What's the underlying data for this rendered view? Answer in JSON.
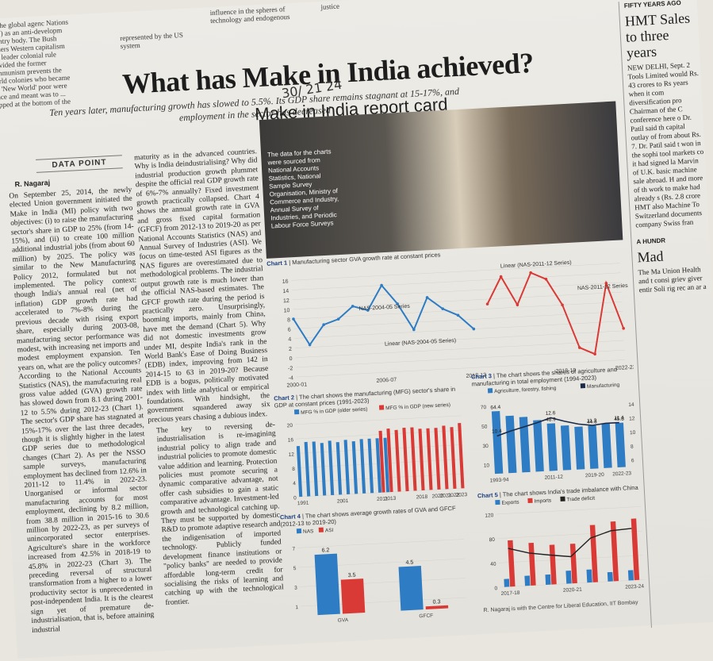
{
  "top_strip": {
    "col1": "sm the global agenc Nations (UN) as an anti-developm country body. The Bush leaders Western capitalism and leader colonial rule provided the former communism prevents the world colonies who became the 'New World' poor were space and meant was to ... trapped at the bottom of the",
    "col2": "represented by the US system",
    "col3": "influence in the spheres of technology and endogenous",
    "col4": "justice"
  },
  "headline": "What has Make in India achieved?",
  "deck": "Ten years later, manufacturing growth has slowed to 5.5%. Its GDP share remains stagnant at 15-17%, and employment in the sector has decreased",
  "handwritten": "30/ 21 24",
  "data_point": "DATA POINT",
  "byline": "R. Nagaraj",
  "body": {
    "col1": "On September 25, 2014, the newly elected Union government initiated the Make in India (MI) policy with two objectives: (i) to raise the manufacturing sector's share in GDP to 25% (from 14-15%), and (ii) to create 100 million additional industrial jobs (from about 60 million) by 2025. The policy was similar to the New Manufacturing Policy 2012, formulated but not implemented. The policy context: though India's annual real (net of inflation) GDP growth rate had accelerated to 7%-8% during the previous decade with rising export share, especially during 2003-08, manufacturing sector performance was modest, with increasing net imports and modest employment expansion. Ten years on, what are the policy outcomes? According to the National Accounts Statistics (NAS), the manufacturing real gross value added (GVA) growth rate has slowed down from 8.1 during 2001-12 to 5.5% during 2012-23 (Chart 1). The sector's GDP share has stagnated at 15%-17% over the last three decades, though it is slightly higher in the latest GDP series due to methodological changes (Chart 2). As per the NSSO sample surveys, manufacturing employment has declined from 12.6% in 2011-12 to 11.4% in 2022-23. Unorganised or informal sector manufacturing accounts for most employment, declining by 8.2 million, from 38.8 million in 2015-16 to 30.6 million by 2022-23, as per surveys of unincorporated sector enterprises. Agriculture's share in the workforce increased from 42.5% in 2018-19 to 45.8% in 2022-23 (Chart 3). The preceding reversal of structural transformation from a higher to a lower productivity sector is unprecedented in post-independent India. It is the clearest sign yet of premature de-industrialisation, that is, before attaining industrial",
    "col2": "maturity as in the advanced countries. Why is India deindustrialising? Why did industrial production growth plummet despite the official real GDP growth rate of 6%-7% annually? Fixed investment growth practically collapsed. Chart 4 shows the annual growth rate in GVA and gross fixed capital formation (GFCF) from 2012-13 to 2019-20 as per National Accounts Statistics (NAS) and Annual Survey of Industries (ASI). We focus on time-tested ASI figures as the NAS figures are overestimated due to methodological problems. The industrial output growth rate is much lower than the official NAS-based estimates. The GFCF growth rate during the period is practically zero. Unsurprisingly, booming imports, mainly from China, have met the demand (Chart 5). Why did not domestic investments grow under MI, despite India's rank in the World Bank's Ease of Doing Business (EDB) index, improving from 142 in 2014-15 to 63 in 2019-20? Because EDB is a bogus, politically motivated index with little analytical or empirical foundations. With hindsight, the government squandered away six precious years chasing a dubious index.",
    "col3": "The key to reversing de-industrialisation is re-imagining industrial policy to align trade and industrial policies to promote domestic value addition and learning. Protection policies must promote securing a dynamic comparative advantage, not offer cash subsidies to gain a static comparative advantage. Investment-led growth and technological catching up. They must be supported by domestic R&D to promote adaptive research and the indigenisation of imported technology. Publicly funded development finance institutions or \"policy banks\" are needed to provide affordable long-term credit for socialising the risks of learning and catching up with the technological frontier."
  },
  "report_card_title": "Make in India report card",
  "photo_note": "The data for the charts were sourced from National Accounts Statistics, National Sample Survey Organisation, Ministry of Commerce and Industry, Annual Survey of Industries, and Periodic Labour Force Surveys",
  "right_rail": {
    "tag": "FIFTY YEARS AGO",
    "headline": "HMT Sales to three years",
    "body": "NEW DELHI, Sept. 2 Tools Limited would Rs. 43 crores to Rs years when it com diversification pro Chairman of the C conference here o Dr. Patil said th capital outlay of from about Rs. 7. Dr. Patil said t won in the sophi tool markets co it had signed la Marvin of U.K. basic machine sale abroad. H and more of th work to make had already s (Rs. 2.8 crore HMT also Machine To Switzerland documents company Swiss fran",
    "tag2": "A HUNDR",
    "headline2": "Mad",
    "body2": "The Ma Union Health and t consi griev giver entir Soli rig rec an ar a"
  },
  "chart_data": [
    {
      "id": "chart1",
      "type": "line",
      "title_bold": "Chart 1",
      "title": "Manufacturing sector GVA growth rate at constant prices",
      "x": [
        "2000-01",
        "2001-02",
        "2002-03",
        "2003-04",
        "2004-05",
        "2005-06",
        "2006-07",
        "2007-08",
        "2008-09",
        "2009-10",
        "2010-11",
        "2011-12",
        "2012-13",
        "2013-14",
        "2014-15",
        "2015-16",
        "2016-17",
        "2017-18",
        "2018-19",
        "2019-20",
        "2020-21",
        "2021-22",
        "2022-23"
      ],
      "x_tick_labels": [
        "2000-01",
        "2006-07",
        "2012-13",
        "2018-19",
        "2022-23"
      ],
      "yticks": [
        -4,
        -2,
        0,
        2,
        4,
        6,
        8,
        10,
        12,
        14,
        16
      ],
      "ylim": [
        -4,
        17
      ],
      "series": [
        {
          "name": "NAS-2004-05 Series",
          "color": "#2e7cc3",
          "values": [
            8.0,
            2.5,
            6.5,
            7.5,
            10.0,
            9.0,
            14.0,
            10.0,
            4.5,
            11.0,
            8.5,
            7.0,
            4.0,
            null,
            null,
            null,
            null,
            null,
            null,
            null,
            null,
            null,
            null
          ]
        },
        {
          "name": "NAS-2011-12 Series",
          "color": "#d93a36",
          "values": [
            null,
            null,
            null,
            null,
            null,
            null,
            null,
            null,
            null,
            null,
            null,
            null,
            null,
            9.0,
            14.5,
            8.5,
            15.0,
            13.5,
            8.0,
            -1.0,
            -2.5,
            12.0,
            2.5
          ]
        }
      ],
      "annotations": [
        "Linear (NAS-2011-12 Series)",
        "Linear (NAS-2004-05 Series)"
      ]
    },
    {
      "id": "chart2",
      "type": "bar",
      "title_bold": "Chart 2",
      "title": "The chart shows the manufacturing (MFG) sector's share in GDP at constant prices (1991-2023)",
      "legend": [
        "MFG % in GDP (older series)",
        "MFG % in GDP (new series)"
      ],
      "categories": [
        "1991",
        "",
        "",
        "",
        "",
        "2001",
        "",
        "",
        "",
        "",
        "2011",
        "2013",
        "",
        "",
        "",
        "2018",
        "",
        "2020",
        "2021",
        "2022",
        "2023"
      ],
      "series": [
        {
          "name": "MFG % in GDP (older series)",
          "color": "#2e7cc3",
          "values": [
            14,
            15,
            15,
            14.5,
            15,
            14.5,
            15,
            14.5,
            15,
            15,
            15,
            15,
            null,
            null,
            null,
            null,
            null,
            null,
            null,
            null,
            null
          ]
        },
        {
          "name": "MFG % in GDP (new series)",
          "color": "#d93a36",
          "values": [
            null,
            null,
            null,
            null,
            null,
            null,
            null,
            null,
            null,
            null,
            17,
            17.5,
            17,
            17.5,
            17.5,
            17,
            17,
            17,
            17.5,
            17,
            18
          ]
        }
      ],
      "yticks": [
        0,
        4,
        8,
        12,
        16,
        20
      ],
      "ylim": [
        0,
        21
      ]
    },
    {
      "id": "chart3",
      "type": "bar",
      "title_bold": "Chart 3",
      "title": "The chart shows the shares of agriculture and manufacturing in total employment (1994-2023)",
      "legend": [
        "Agriculture, forestry, fishing",
        "Manufacturing"
      ],
      "categories": [
        "1993-94",
        "",
        "",
        "",
        "2011-12",
        "",
        "",
        "2019-20",
        "",
        "2022-23"
      ],
      "x_tick_labels": [
        "1993-94",
        "2011-12",
        "2019-20",
        "2022-23"
      ],
      "series": [
        {
          "name": "Agriculture, forestry, fishing",
          "color": "#2e7cc3",
          "values": [
            64.4,
            59,
            57,
            53,
            48.9,
            46,
            44,
            44.3,
            46,
            45.8
          ]
        },
        {
          "name": "Manufacturing",
          "color": "#1b2a4a",
          "values": [
            10.4,
            11,
            11.5,
            12,
            12.6,
            12,
            11.5,
            11.2,
            11.4,
            11.4
          ]
        }
      ],
      "data_labels_agri": [
        "64.4",
        "48.9",
        "44.3",
        "45.8"
      ],
      "data_labels_mfg": [
        "10.4",
        "12.6",
        "11.2",
        "11.4"
      ],
      "yticks_left": [
        10,
        30,
        50,
        70
      ],
      "yticks_right": [
        6,
        8,
        10,
        12,
        14
      ]
    },
    {
      "id": "chart4",
      "type": "bar",
      "title_bold": "Chart 4",
      "title": "The chart shows average growth rates of GVA and GFCF (2012-13 to 2019-20)",
      "legend": [
        "NAS",
        "ASI"
      ],
      "categories": [
        "GVA",
        "GFCF"
      ],
      "series": [
        {
          "name": "NAS",
          "color": "#2e7cc3",
          "values": [
            6.2,
            4.5
          ]
        },
        {
          "name": "ASI",
          "color": "#d93a36",
          "values": [
            3.5,
            0.3
          ]
        }
      ],
      "yticks": [
        1,
        3,
        5,
        7
      ],
      "ylim": [
        0,
        7.5
      ]
    },
    {
      "id": "chart5",
      "type": "bar",
      "title_bold": "Chart 5",
      "title": "The chart shows India's trade imbalance with China",
      "legend": [
        "Exports",
        "Imports",
        "Trade deficit"
      ],
      "categories": [
        "2017-18",
        "2018-19",
        "2019-20",
        "2020-21",
        "2021-22",
        "2022-23",
        "2023-24"
      ],
      "x_tick_labels": [
        "2017-18",
        "2020-21",
        "2023-24"
      ],
      "series": [
        {
          "name": "Exports",
          "color": "#2e7cc3",
          "values": [
            13,
            16.5,
            16.6,
            21.2,
            21.3,
            15.3,
            16.7
          ]
        },
        {
          "name": "Imports",
          "color": "#d93a36",
          "values": [
            76,
            70,
            65,
            65,
            94,
            98,
            101
          ]
        },
        {
          "name": "Trade deficit",
          "color": "#222222",
          "values": [
            63,
            53.5,
            48.4,
            44,
            72.7,
            83.1,
            85
          ]
        }
      ],
      "yticks": [
        0,
        40,
        80,
        120
      ],
      "ylim": [
        0,
        125
      ]
    }
  ],
  "footer_note": "R. Nagaraj is with the Centre for Liberal Education, IIT Bombay"
}
